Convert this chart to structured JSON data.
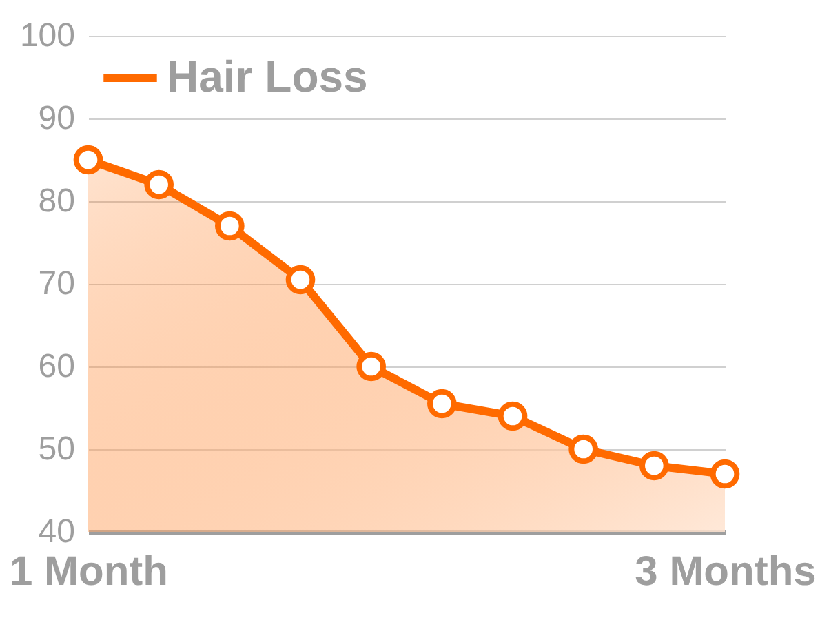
{
  "chart_data": {
    "type": "area",
    "categories": [
      "1 Month",
      null,
      null,
      null,
      null,
      null,
      null,
      null,
      null,
      "3 Months"
    ],
    "series": [
      {
        "name": "Hair Loss",
        "color": "#ff6a00",
        "values": [
          85,
          82,
          77,
          70.5,
          60,
          55.5,
          54,
          50,
          48,
          47
        ]
      }
    ],
    "ylim": [
      40,
      100
    ],
    "yticks": [
      40,
      50,
      60,
      70,
      80,
      90,
      100
    ],
    "grid": "y",
    "legend": "top left",
    "marker": "circle",
    "line_style": "solid"
  }
}
